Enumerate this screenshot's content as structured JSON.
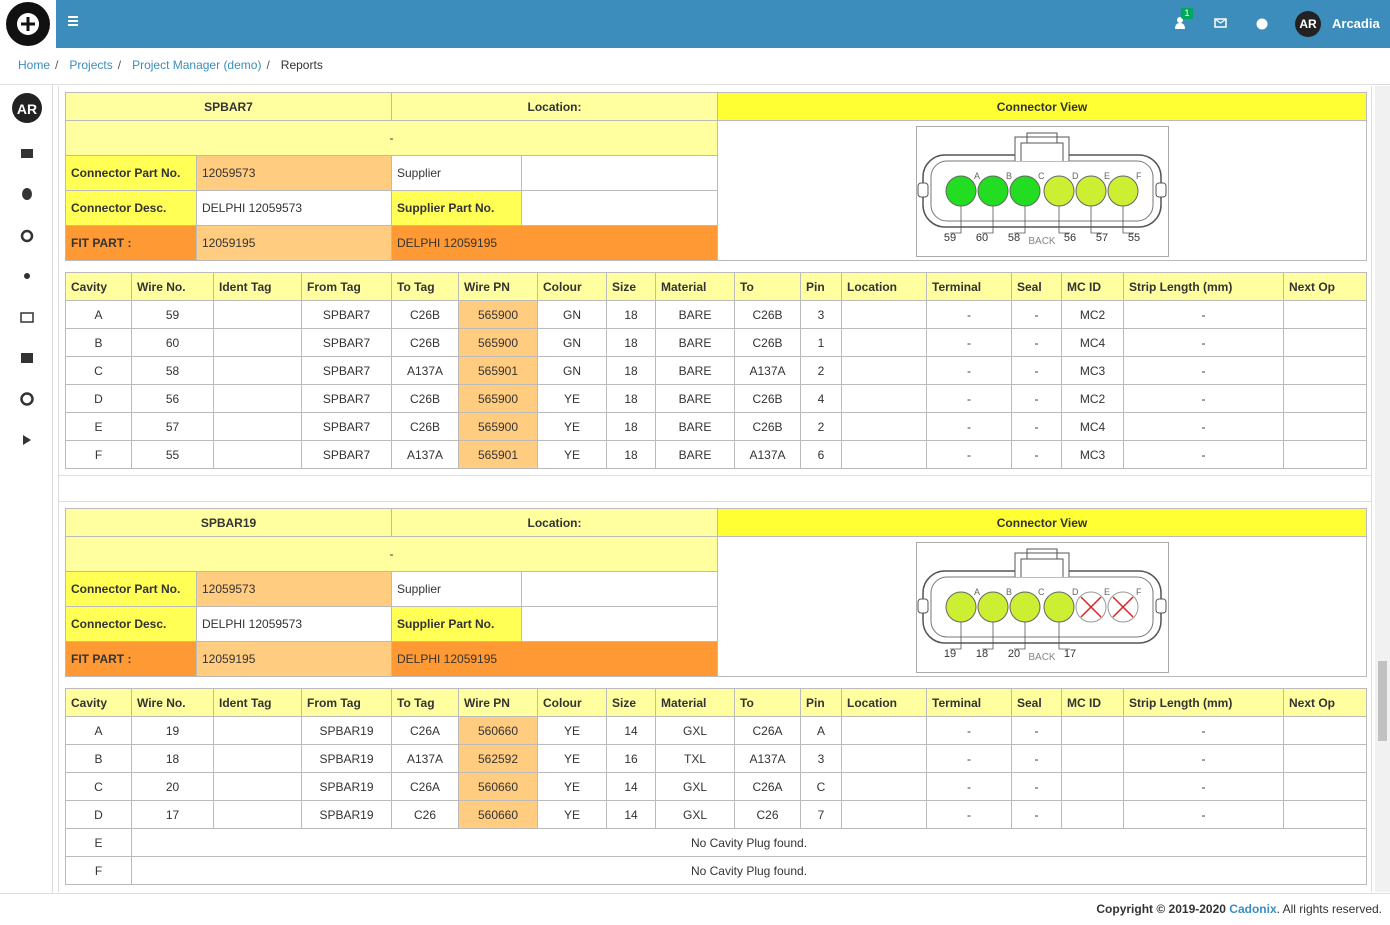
{
  "topbar": {
    "notification_count": "1",
    "user_initials": "AR",
    "user_name": "Arcadia"
  },
  "breadcrumb": {
    "items": [
      "Home",
      "Projects",
      "Project Manager (demo)",
      "Reports"
    ],
    "separator": "/"
  },
  "columns": [
    "Cavity",
    "Wire No.",
    "Ident Tag",
    "From Tag",
    "To Tag",
    "Wire PN",
    "Colour",
    "Size",
    "Material",
    "To",
    "Pin",
    "Location",
    "Terminal",
    "Seal",
    "MC ID",
    "Strip Length (mm)",
    "Next Op"
  ],
  "connectors": [
    {
      "name": "SPBAR7",
      "location_label": "Location:",
      "location": "-",
      "view_label": "Connector View",
      "part_no_label": "Connector Part No.",
      "part_no": "12059573",
      "supplier_label": "Supplier",
      "desc_label": "Connector Desc.",
      "desc": "DELPHI 12059573",
      "supplier_part_label": "Supplier Part No.",
      "fit_label": "FIT PART :",
      "fit_part": "12059195",
      "fit_desc": "DELPHI 12059195",
      "back_label": "BACK",
      "cavities": [
        {
          "letter": "A",
          "wire": "59",
          "color": "#22dd22"
        },
        {
          "letter": "B",
          "wire": "60",
          "color": "#22dd22"
        },
        {
          "letter": "C",
          "wire": "58",
          "color": "#22dd22"
        },
        {
          "letter": "D",
          "wire": "56",
          "color": "#ccee33"
        },
        {
          "letter": "E",
          "wire": "57",
          "color": "#ccee33"
        },
        {
          "letter": "F",
          "wire": "55",
          "color": "#ccee33"
        }
      ],
      "rows": [
        [
          "A",
          "59",
          null,
          "SPBAR7",
          "C26B",
          "565900",
          "GN",
          "18",
          "BARE",
          "C26B",
          "3",
          null,
          "-",
          "-",
          "MC2",
          "-",
          null
        ],
        [
          "B",
          "60",
          null,
          "SPBAR7",
          "C26B",
          "565900",
          "GN",
          "18",
          "BARE",
          "C26B",
          "1",
          null,
          "-",
          "-",
          "MC4",
          "-",
          null
        ],
        [
          "C",
          "58",
          null,
          "SPBAR7",
          "A137A",
          "565901",
          "GN",
          "18",
          "BARE",
          "A137A",
          "2",
          null,
          "-",
          "-",
          "MC3",
          "-",
          null
        ],
        [
          "D",
          "56",
          null,
          "SPBAR7",
          "C26B",
          "565900",
          "YE",
          "18",
          "BARE",
          "C26B",
          "4",
          null,
          "-",
          "-",
          "MC2",
          "-",
          null
        ],
        [
          "E",
          "57",
          null,
          "SPBAR7",
          "C26B",
          "565900",
          "YE",
          "18",
          "BARE",
          "C26B",
          "2",
          null,
          "-",
          "-",
          "MC4",
          "-",
          null
        ],
        [
          "F",
          "55",
          null,
          "SPBAR7",
          "A137A",
          "565901",
          "YE",
          "18",
          "BARE",
          "A137A",
          "6",
          null,
          "-",
          "-",
          "MC3",
          "-",
          null
        ]
      ]
    },
    {
      "name": "SPBAR19",
      "location_label": "Location:",
      "location": "-",
      "view_label": "Connector View",
      "part_no_label": "Connector Part No.",
      "part_no": "12059573",
      "supplier_label": "Supplier",
      "desc_label": "Connector Desc.",
      "desc": "DELPHI 12059573",
      "supplier_part_label": "Supplier Part No.",
      "fit_label": "FIT PART :",
      "fit_part": "12059195",
      "fit_desc": "DELPHI 12059195",
      "back_label": "BACK",
      "cavities": [
        {
          "letter": "A",
          "wire": "19",
          "color": "#ccee33"
        },
        {
          "letter": "B",
          "wire": "18",
          "color": "#ccee33"
        },
        {
          "letter": "C",
          "wire": "20",
          "color": "#ccee33"
        },
        {
          "letter": "D",
          "wire": "17",
          "color": "#ccee33"
        },
        {
          "letter": "E",
          "empty": true
        },
        {
          "letter": "F",
          "empty": true
        }
      ],
      "rows": [
        [
          "A",
          "19",
          null,
          "SPBAR19",
          "C26A",
          "560660",
          "YE",
          "14",
          "GXL",
          "C26A",
          "A",
          null,
          "-",
          "-",
          null,
          "-",
          null
        ],
        [
          "B",
          "18",
          null,
          "SPBAR19",
          "A137A",
          "562592",
          "YE",
          "16",
          "TXL",
          "A137A",
          "3",
          null,
          "-",
          "-",
          null,
          "-",
          null
        ],
        [
          "C",
          "20",
          null,
          "SPBAR19",
          "C26A",
          "560660",
          "YE",
          "14",
          "GXL",
          "C26A",
          "C",
          null,
          "-",
          "-",
          null,
          "-",
          null
        ],
        [
          "D",
          "17",
          null,
          "SPBAR19",
          "C26",
          "560660",
          "YE",
          "14",
          "GXL",
          "C26",
          "7",
          null,
          "-",
          "-",
          null,
          "-",
          null
        ],
        [
          "E",
          "No Cavity Plug found."
        ],
        [
          "F",
          "No Cavity Plug found."
        ]
      ]
    }
  ],
  "footer": {
    "copyright": "Copyright © 2019-2020",
    "company": "Cadonix",
    "rights": ". All rights reserved."
  }
}
